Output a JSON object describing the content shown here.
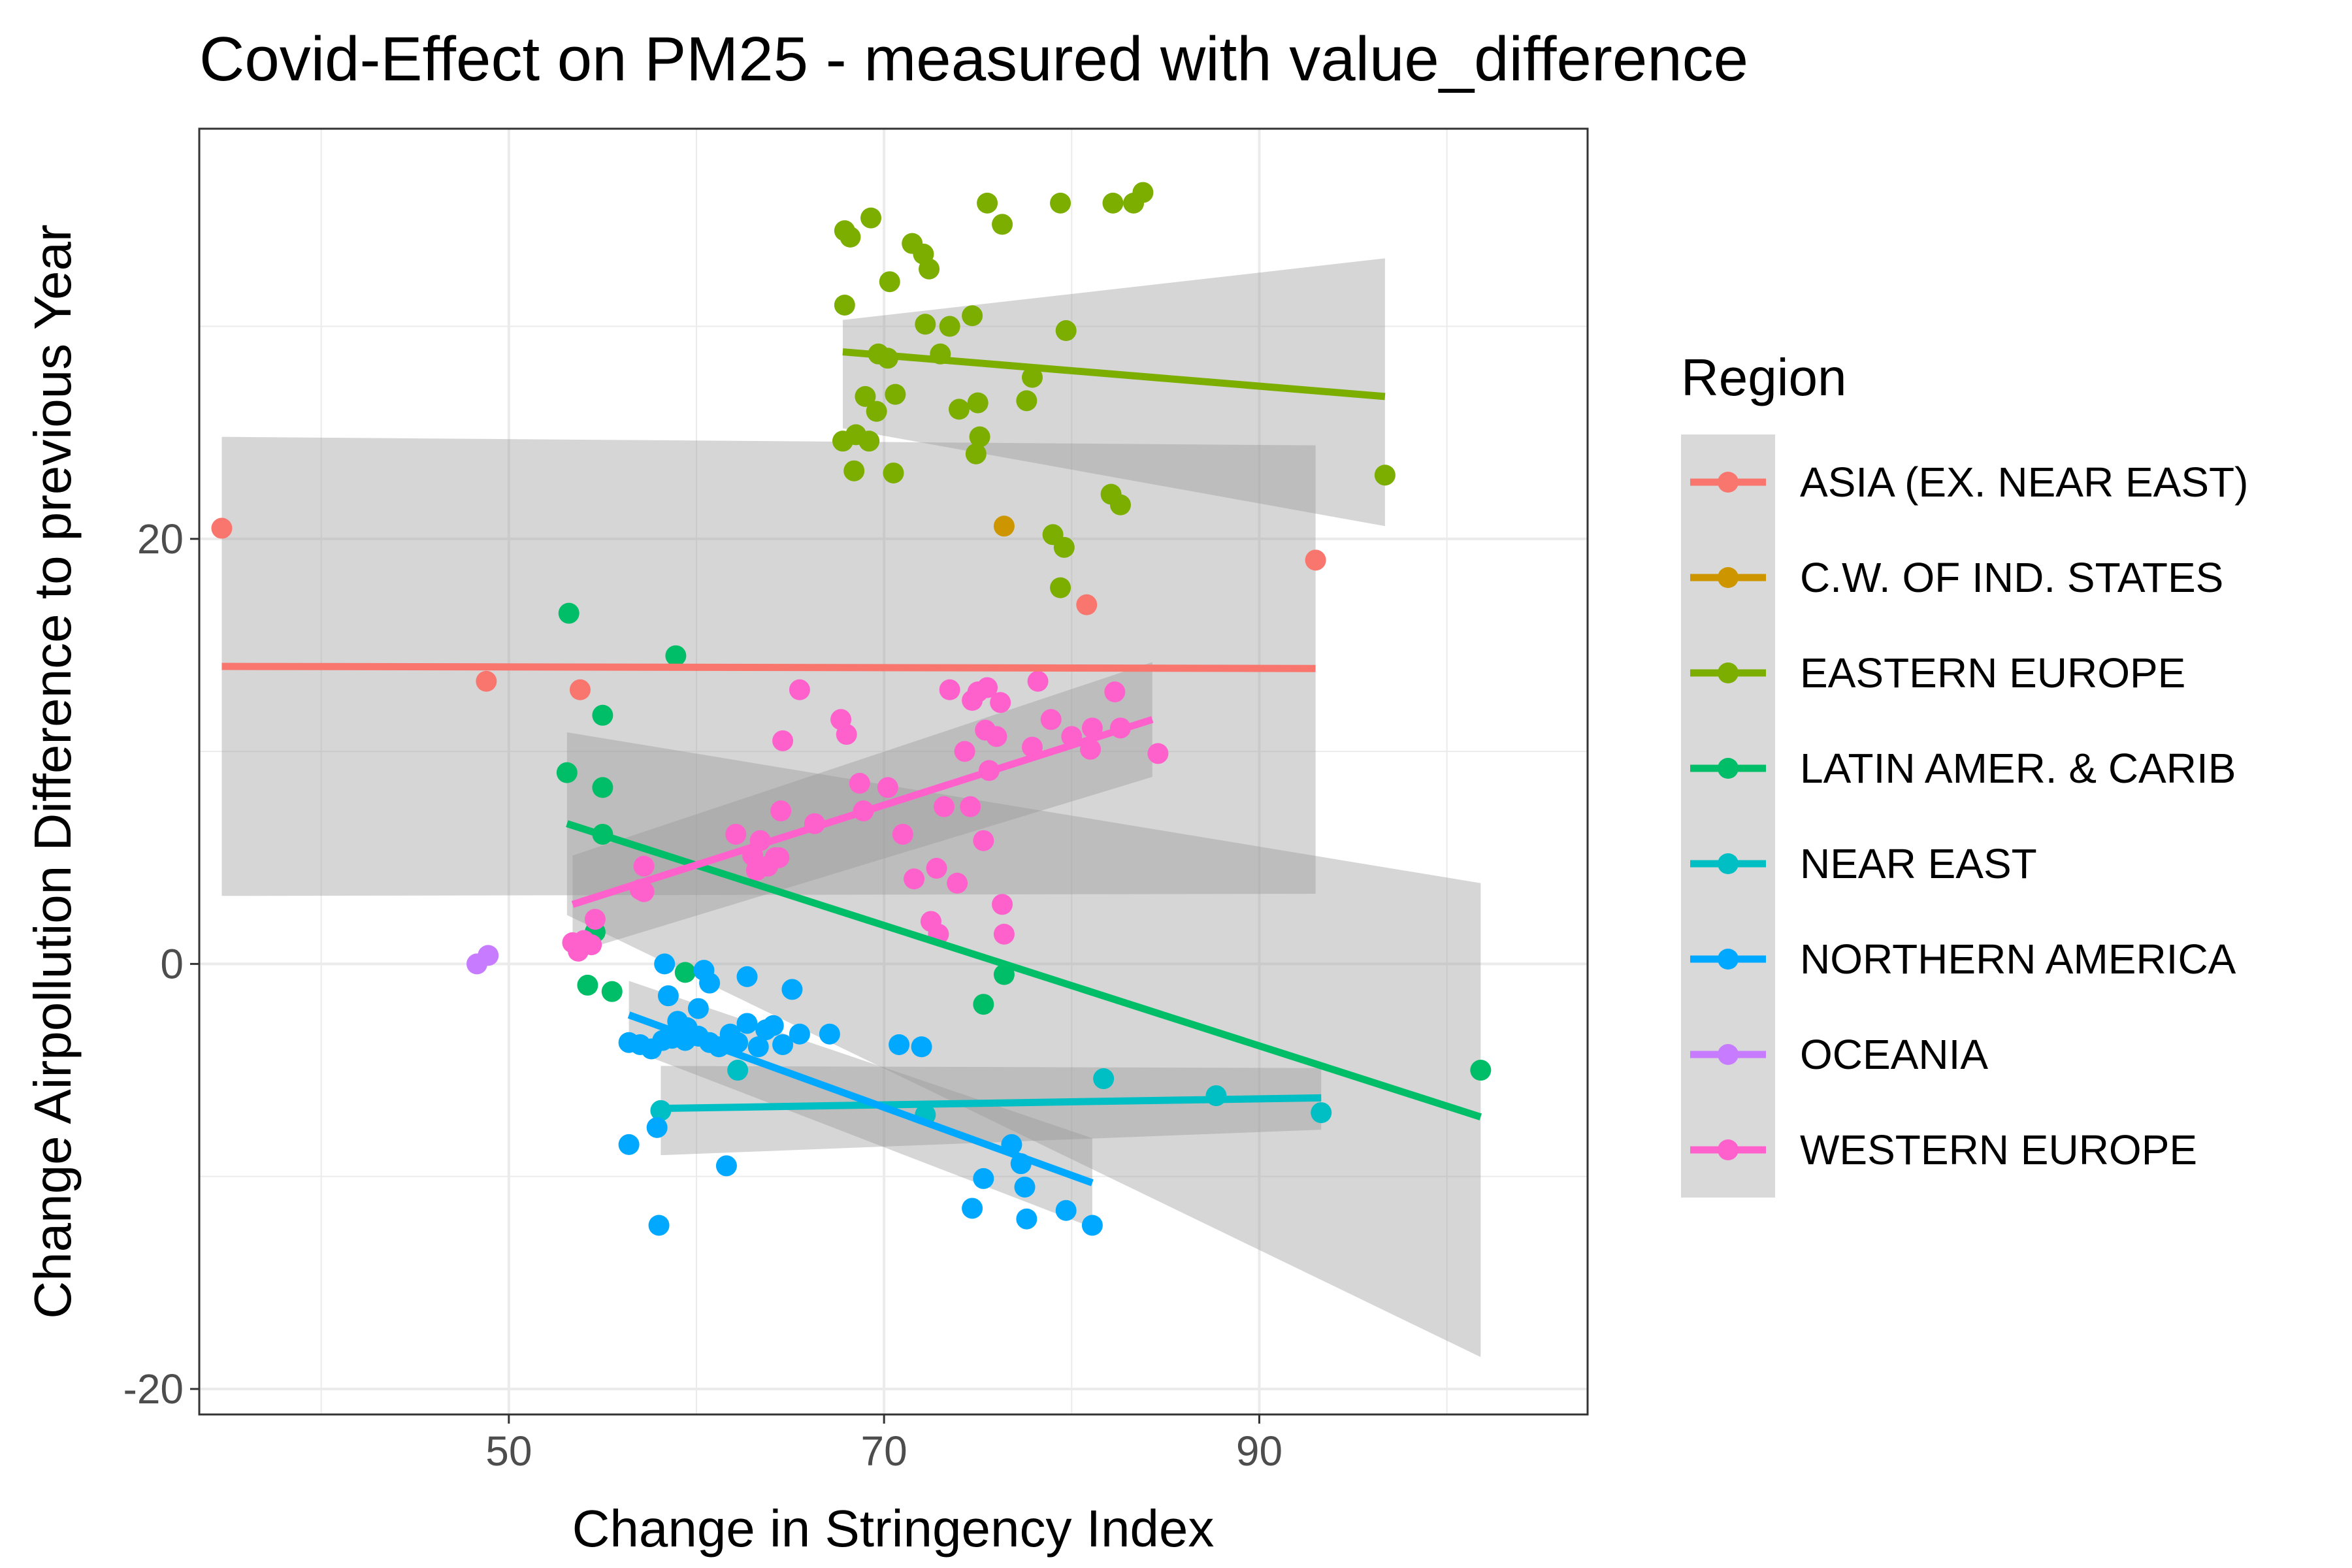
{
  "chart_data": {
    "type": "scatter",
    "title": "Covid-Effect on PM25 - measured with value_difference",
    "xlabel": "Change in Stringency Index",
    "ylabel": "Change Airpollution Difference to previous Year",
    "xlim": [
      33.5,
      107.5
    ],
    "ylim": [
      -21.2,
      39.3
    ],
    "x_ticks": [
      50,
      70,
      90
    ],
    "y_ticks": [
      -20,
      0,
      20
    ],
    "grid": true,
    "legend": {
      "title": "Region",
      "position": "right"
    },
    "series": [
      {
        "name": "ASIA (EX. NEAR EAST)",
        "color": "#F8766D",
        "points": [
          [
            34.7,
            20.5
          ],
          [
            48.8,
            13.3
          ],
          [
            53.8,
            12.9
          ],
          [
            80.8,
            16.9
          ],
          [
            93.0,
            19.0
          ]
        ],
        "fit": {
          "x": [
            34.7,
            93.0
          ],
          "y": [
            14.0,
            13.9
          ]
        },
        "ci": {
          "x": [
            34.7,
            93.0
          ],
          "lower": [
            3.2,
            3.3
          ],
          "upper": [
            24.8,
            24.4
          ]
        }
      },
      {
        "name": "C.W. OF IND. STATES",
        "color": "#CD9600",
        "points": [
          [
            76.4,
            20.6
          ]
        ],
        "fit": null,
        "ci": null
      },
      {
        "name": "EASTERN EUROPE",
        "color": "#7CAE00",
        "points": [
          [
            67.9,
            34.5
          ],
          [
            69.3,
            35.1
          ],
          [
            71.5,
            33.9
          ],
          [
            68.2,
            34.2
          ],
          [
            72.1,
            33.4
          ],
          [
            72.4,
            32.7
          ],
          [
            70.3,
            32.1
          ],
          [
            75.5,
            35.8
          ],
          [
            76.3,
            34.8
          ],
          [
            79.4,
            35.8
          ],
          [
            82.2,
            35.8
          ],
          [
            83.3,
            35.8
          ],
          [
            83.8,
            36.3
          ],
          [
            67.9,
            31.0
          ],
          [
            72.2,
            30.1
          ],
          [
            73.5,
            30.0
          ],
          [
            74.7,
            30.5
          ],
          [
            79.7,
            29.8
          ],
          [
            69.7,
            28.7
          ],
          [
            70.2,
            28.5
          ],
          [
            73.0,
            28.7
          ],
          [
            70.6,
            26.8
          ],
          [
            69.0,
            26.7
          ],
          [
            69.6,
            26.0
          ],
          [
            74.0,
            26.1
          ],
          [
            75.0,
            26.4
          ],
          [
            77.6,
            26.5
          ],
          [
            77.9,
            27.6
          ],
          [
            67.8,
            24.6
          ],
          [
            68.5,
            24.9
          ],
          [
            69.2,
            24.6
          ],
          [
            68.4,
            23.2
          ],
          [
            70.5,
            23.1
          ],
          [
            75.1,
            24.8
          ],
          [
            74.9,
            24.0
          ],
          [
            82.1,
            22.1
          ],
          [
            82.6,
            21.6
          ],
          [
            79.0,
            20.2
          ],
          [
            79.6,
            19.6
          ],
          [
            79.4,
            17.7
          ],
          [
            96.7,
            23.0
          ]
        ],
        "fit": {
          "x": [
            67.8,
            96.7
          ],
          "y": [
            28.8,
            26.7
          ]
        },
        "ci": {
          "x": [
            67.8,
            96.7
          ],
          "lower": [
            25.2,
            20.6
          ],
          "upper": [
            30.3,
            33.2
          ]
        }
      },
      {
        "name": "LATIN AMER. & CARIB",
        "color": "#00BE67",
        "points": [
          [
            53.2,
            16.5
          ],
          [
            58.9,
            14.5
          ],
          [
            53.1,
            9.0
          ],
          [
            55.0,
            11.7
          ],
          [
            55.0,
            8.3
          ],
          [
            55.0,
            6.1
          ],
          [
            54.6,
            1.5
          ],
          [
            54.2,
            -1.0
          ],
          [
            55.5,
            -1.3
          ],
          [
            59.4,
            -0.4
          ],
          [
            75.3,
            -1.9
          ],
          [
            76.4,
            -0.5
          ],
          [
            101.8,
            -5.0
          ]
        ],
        "fit": {
          "x": [
            53.1,
            101.8
          ],
          "y": [
            6.6,
            -7.2
          ]
        },
        "ci": {
          "x": [
            53.1,
            101.8
          ],
          "lower": [
            2.3,
            -18.5
          ],
          "upper": [
            10.9,
            3.8
          ]
        }
      },
      {
        "name": "NEAR EAST",
        "color": "#00BFC4",
        "points": [
          [
            58.1,
            -6.9
          ],
          [
            62.2,
            -5.0
          ],
          [
            72.2,
            -7.1
          ],
          [
            81.7,
            -5.4
          ],
          [
            87.7,
            -6.2
          ],
          [
            93.3,
            -7.0
          ]
        ],
        "fit": {
          "x": [
            58.1,
            93.3
          ],
          "y": [
            -6.8,
            -6.3
          ]
        },
        "ci": {
          "x": [
            58.1,
            93.3
          ],
          "lower": [
            -9.0,
            -7.8
          ],
          "upper": [
            -4.8,
            -4.9
          ]
        }
      },
      {
        "name": "NORTHERN AMERICA",
        "color": "#00A9FF",
        "points": [
          [
            58.3,
            0.0
          ],
          [
            60.4,
            -0.3
          ],
          [
            62.7,
            -0.6
          ],
          [
            60.7,
            -0.9
          ],
          [
            58.5,
            -1.5
          ],
          [
            60.1,
            -2.1
          ],
          [
            65.1,
            -1.2
          ],
          [
            59.0,
            -2.7
          ],
          [
            59.5,
            -3.0
          ],
          [
            56.4,
            -3.7
          ],
          [
            57.0,
            -3.8
          ],
          [
            57.6,
            -4.0
          ],
          [
            58.2,
            -3.6
          ],
          [
            58.7,
            -3.5
          ],
          [
            59.4,
            -3.6
          ],
          [
            60.1,
            -3.4
          ],
          [
            60.7,
            -3.7
          ],
          [
            61.2,
            -3.9
          ],
          [
            61.8,
            -3.3
          ],
          [
            62.2,
            -3.7
          ],
          [
            62.7,
            -2.8
          ],
          [
            63.3,
            -3.9
          ],
          [
            64.1,
            -2.9
          ],
          [
            64.6,
            -3.8
          ],
          [
            65.5,
            -3.3
          ],
          [
            67.1,
            -3.3
          ],
          [
            63.7,
            -3.1
          ],
          [
            70.8,
            -3.8
          ],
          [
            72.0,
            -3.9
          ],
          [
            56.4,
            -8.5
          ],
          [
            57.9,
            -7.7
          ],
          [
            61.6,
            -9.5
          ],
          [
            58.0,
            -12.3
          ],
          [
            74.7,
            -11.5
          ],
          [
            75.3,
            -10.1
          ],
          [
            76.8,
            -8.5
          ],
          [
            77.3,
            -9.4
          ],
          [
            77.5,
            -10.5
          ],
          [
            77.6,
            -12.0
          ],
          [
            79.7,
            -11.6
          ],
          [
            81.1,
            -12.3
          ]
        ],
        "fit": {
          "x": [
            56.4,
            81.1
          ],
          "y": [
            -2.4,
            -10.3
          ]
        },
        "ci": {
          "x": [
            56.4,
            81.1
          ],
          "lower": [
            -4.0,
            -12.4
          ],
          "upper": [
            -0.8,
            -8.2
          ]
        }
      },
      {
        "name": "OCEANIA",
        "color": "#C77CFF",
        "points": [
          [
            48.3,
            0.0
          ],
          [
            48.9,
            0.4
          ]
        ],
        "fit": null,
        "ci": null
      },
      {
        "name": "WESTERN EUROPE",
        "color": "#FF61CC",
        "points": [
          [
            53.4,
            1.0
          ],
          [
            53.7,
            0.6
          ],
          [
            54.0,
            1.1
          ],
          [
            54.4,
            0.9
          ],
          [
            54.6,
            2.1
          ],
          [
            57.0,
            3.5
          ],
          [
            57.2,
            4.6
          ],
          [
            62.1,
            6.1
          ],
          [
            63.0,
            5.1
          ],
          [
            63.4,
            5.8
          ],
          [
            63.2,
            4.4
          ],
          [
            63.8,
            4.6
          ],
          [
            64.2,
            5.0
          ],
          [
            64.4,
            5.0
          ],
          [
            64.6,
            10.5
          ],
          [
            64.5,
            7.2
          ],
          [
            65.5,
            12.9
          ],
          [
            66.3,
            6.6
          ],
          [
            67.7,
            11.5
          ],
          [
            68.0,
            10.8
          ],
          [
            68.7,
            8.5
          ],
          [
            68.9,
            7.2
          ],
          [
            70.2,
            8.3
          ],
          [
            71.0,
            6.1
          ],
          [
            71.6,
            4.0
          ],
          [
            72.5,
            2.0
          ],
          [
            72.8,
            4.5
          ],
          [
            72.9,
            1.4
          ],
          [
            73.2,
            7.4
          ],
          [
            73.5,
            12.9
          ],
          [
            73.9,
            3.8
          ],
          [
            74.3,
            10.0
          ],
          [
            74.7,
            12.4
          ],
          [
            74.6,
            7.4
          ],
          [
            75.0,
            12.8
          ],
          [
            75.5,
            13.0
          ],
          [
            75.3,
            5.8
          ],
          [
            75.4,
            11.0
          ],
          [
            75.6,
            9.1
          ],
          [
            76.0,
            10.7
          ],
          [
            76.2,
            12.3
          ],
          [
            76.3,
            2.8
          ],
          [
            76.4,
            1.4
          ],
          [
            77.9,
            10.2
          ],
          [
            78.2,
            13.3
          ],
          [
            78.9,
            11.5
          ],
          [
            80.0,
            10.7
          ],
          [
            81.0,
            10.1
          ],
          [
            81.1,
            11.1
          ],
          [
            82.3,
            12.8
          ],
          [
            82.6,
            11.1
          ],
          [
            84.6,
            9.9
          ],
          [
            57.2,
            3.4
          ]
        ],
        "fit": {
          "x": [
            53.4,
            84.3
          ],
          "y": [
            2.8,
            11.5
          ]
        },
        "ci": {
          "x": [
            53.4,
            84.3
          ],
          "lower": [
            0.5,
            8.8
          ],
          "upper": [
            5.1,
            14.2
          ]
        }
      }
    ]
  }
}
